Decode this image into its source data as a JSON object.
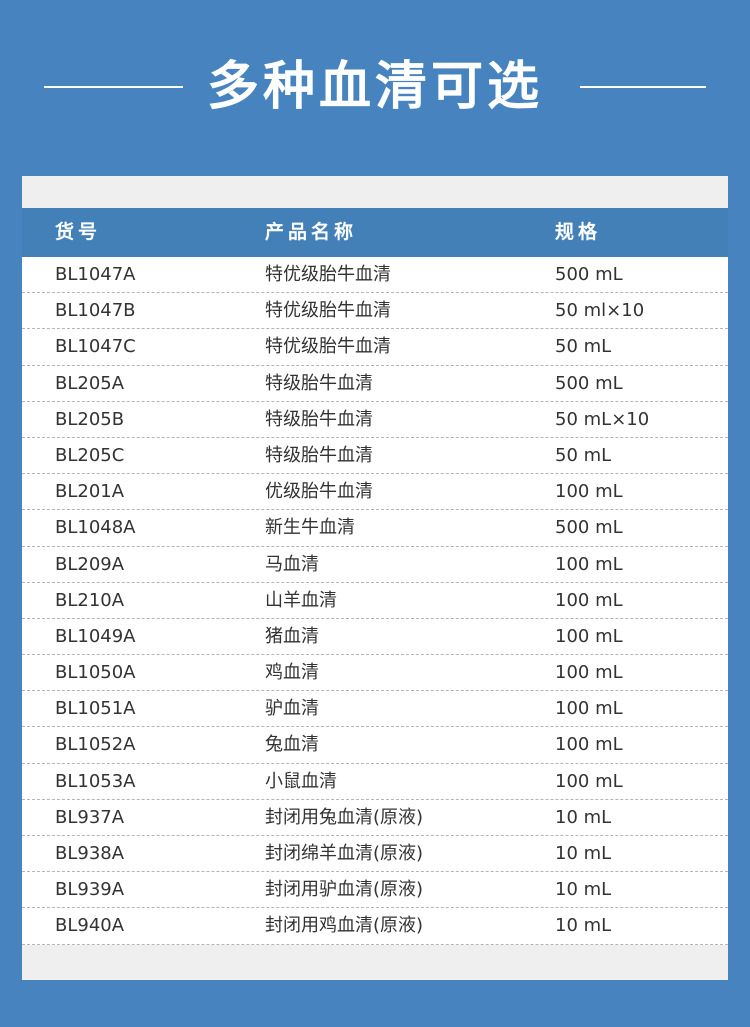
{
  "title": "多种血清可选",
  "table": {
    "headers": [
      "货号",
      "产品名称",
      "规格"
    ],
    "rows": [
      [
        "BL1047A",
        "特优级胎牛血清",
        "500 mL"
      ],
      [
        "BL1047B",
        "特优级胎牛血清",
        "50 ml×10"
      ],
      [
        "BL1047C",
        "特优级胎牛血清",
        "50 mL"
      ],
      [
        "BL205A",
        "特级胎牛血清",
        "500 mL"
      ],
      [
        "BL205B",
        "特级胎牛血清",
        "50 mL×10"
      ],
      [
        "BL205C",
        "特级胎牛血清",
        "50 mL"
      ],
      [
        "BL201A",
        "优级胎牛血清",
        "100 mL"
      ],
      [
        "BL1048A",
        "新生牛血清",
        "500 mL"
      ],
      [
        "BL209A",
        "马血清",
        "100 mL"
      ],
      [
        "BL210A",
        "山羊血清",
        "100 mL"
      ],
      [
        "BL1049A",
        "猪血清",
        "100 mL"
      ],
      [
        "BL1050A",
        "鸡血清",
        "100 mL"
      ],
      [
        "BL1051A",
        "驴血清",
        "100 mL"
      ],
      [
        "BL1052A",
        "兔血清",
        "100 mL"
      ],
      [
        "BL1053A",
        "小鼠血清",
        "100 mL"
      ],
      [
        "BL937A",
        "封闭用兔血清(原液)",
        "10 mL"
      ],
      [
        "BL938A",
        "封闭绵羊血清(原液)",
        "10 mL"
      ],
      [
        "BL939A",
        "封闭用驴血清(原液)",
        "10 mL"
      ],
      [
        "BL940A",
        "封闭用鸡血清(原液)",
        "10 mL"
      ]
    ]
  },
  "colors": {
    "background": "#4784bf",
    "header": "#4480b8",
    "panel": "#efefef"
  }
}
